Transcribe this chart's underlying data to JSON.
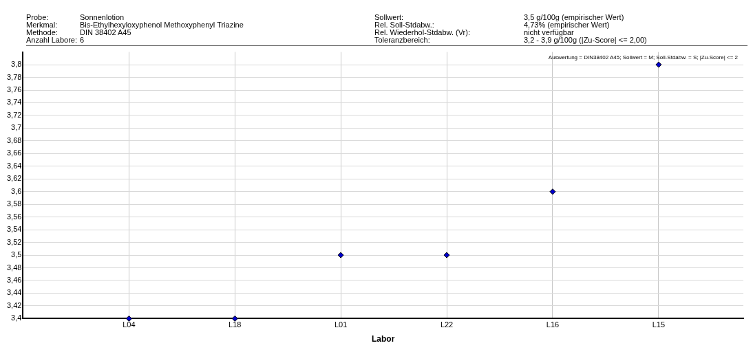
{
  "chart_data": {
    "type": "scatter",
    "xlabel": "Labor",
    "annotations": [
      "Probe:",
      "Sonnenlotion",
      "Sollwert:",
      "3,5 g/100g (empirischer Wert)",
      "Merkmal:",
      "Bis-Ethylhexyloxyphenol Methoxyphenyl Triazine",
      "Rel. Soll-Stdabw.:",
      "4,73% (empirischer Wert)",
      "Methode:",
      "DIN 38402 A45",
      "Rel. Wiederhol-Stdabw. (Vr):",
      "nicht verfügbar",
      "Anzahl Labore:",
      "6",
      "Toleranzbereich:",
      "3,2 - 3,9 g/100g (|Zu-Score| <= 2,00)",
      "Auswertung = DIN38402 A45; Sollwert = M; Soll-Stdabw. = S; |Zu-Score| <= 2"
    ],
    "categories": [
      "L04",
      "L18",
      "L01",
      "L22",
      "L16",
      "L15"
    ],
    "series": [
      {
        "color": "#0000cc",
        "values": [
          3.4,
          3.4,
          3.5,
          3.5,
          3.6,
          3.8
        ]
      }
    ],
    "ylim": [
      3.4,
      3.82
    ],
    "yticks": [
      {
        "value": 3.4,
        "label": "3,4"
      },
      {
        "value": 3.42,
        "label": "3,42"
      },
      {
        "value": 3.44,
        "label": "3,44"
      },
      {
        "value": 3.46,
        "label": "3,46"
      },
      {
        "value": 3.48,
        "label": "3,48"
      },
      {
        "value": 3.5,
        "label": "3,5"
      },
      {
        "value": 3.52,
        "label": "3,52"
      },
      {
        "value": 3.54,
        "label": "3,54"
      },
      {
        "value": 3.56,
        "label": "3,56"
      },
      {
        "value": 3.58,
        "label": "3,58"
      },
      {
        "value": 3.6,
        "label": "3,6"
      },
      {
        "value": 3.62,
        "label": "3,62"
      },
      {
        "value": 3.64,
        "label": "3,64"
      },
      {
        "value": 3.66,
        "label": "3,66"
      },
      {
        "value": 3.68,
        "label": "3,68"
      },
      {
        "value": 3.7,
        "label": "3,7"
      },
      {
        "value": 3.72,
        "label": "3,72"
      },
      {
        "value": 3.74,
        "label": "3,74"
      },
      {
        "value": 3.76,
        "label": "3,76"
      },
      {
        "value": 3.78,
        "label": "3,78"
      },
      {
        "value": 3.8,
        "label": "3,8"
      }
    ],
    "grid": true,
    "legend": false,
    "marker": "diamond"
  }
}
